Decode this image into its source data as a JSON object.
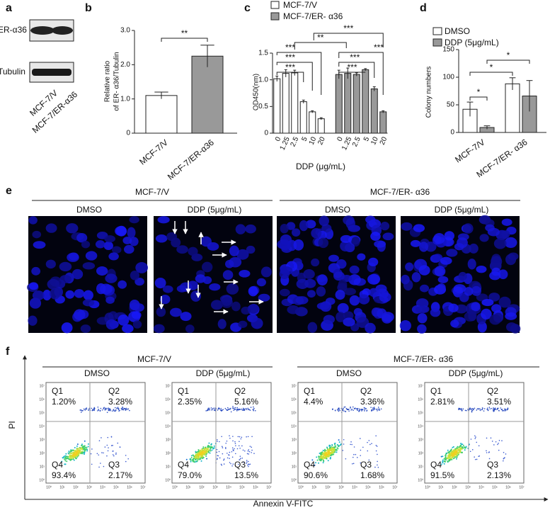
{
  "panel_a": {
    "label": "a",
    "bands": [
      "ER-α36",
      "Tubulin"
    ],
    "lanes": [
      "MCF-7/V",
      "MCF-7/ER-α36"
    ]
  },
  "chart_data": [
    {
      "type": "bar",
      "panel": "b",
      "ylabel": [
        "Relative ratio",
        "of ER- α36/Tubulin"
      ],
      "categories": [
        "MCF-7/V",
        "MCF-7/ER-α36"
      ],
      "values": [
        1.1,
        2.25
      ],
      "errors": [
        0.1,
        0.32
      ],
      "colors": [
        "#ffffff",
        "#999999"
      ],
      "ylim": [
        0,
        3
      ],
      "yticks": [
        0,
        {
          "value": 1,
          "label": "1.0"
        },
        {
          "value": 2,
          "label": "2.0"
        },
        {
          "value": 3,
          "label": "3.0"
        }
      ],
      "annotations": [
        "**"
      ]
    },
    {
      "type": "bar",
      "panel": "c",
      "xlabel": "DDP (μg/mL)",
      "ylabel": "OD450(nm)",
      "categories": [
        "0",
        "1.25",
        "2.5",
        "5",
        "10",
        "20"
      ],
      "series": [
        {
          "name": "MCF-7/V",
          "color": "#ffffff",
          "values": [
            1.02,
            1.12,
            1.13,
            0.59,
            0.4,
            0.27
          ],
          "errors": [
            0.05,
            0.07,
            0.05,
            0.03,
            0.02,
            0.02
          ]
        },
        {
          "name": "MCF-7/ER- α36",
          "color": "#999999",
          "values": [
            1.1,
            1.12,
            1.1,
            1.19,
            0.83,
            0.4
          ],
          "errors": [
            0.08,
            0.1,
            0.03,
            0.02,
            0.04,
            0.02
          ]
        }
      ],
      "ylim": [
        0,
        1.5
      ],
      "yticks": [
        0,
        0.5,
        {
          "value": 1,
          "label": "1.0"
        },
        1.5
      ],
      "annotations": [
        "***",
        "***",
        "***",
        "***",
        "**",
        "***",
        "***",
        "***"
      ]
    },
    {
      "type": "bar",
      "panel": "d",
      "ylabel": "Colony numbers",
      "categories": [
        "MCF-7/V",
        "MCF-7/ER- α36"
      ],
      "series": [
        {
          "name": "DMSO",
          "color": "#ffffff",
          "values": [
            42,
            88
          ],
          "errors": [
            13,
            11
          ]
        },
        {
          "name": "DDP (5μg/mL)",
          "color": "#999999",
          "values": [
            9,
            66
          ],
          "errors": [
            3,
            28
          ]
        }
      ],
      "ylim": [
        0,
        150
      ],
      "yticks": [
        0,
        50,
        100,
        150
      ],
      "annotations": [
        "*",
        "*",
        "*"
      ]
    }
  ],
  "panel_e": {
    "label": "e",
    "groups": [
      "MCF-7/V",
      "MCF-7/ER- α36"
    ],
    "conditions": [
      "DMSO",
      "DDP (5μg/mL)",
      "DMSO",
      "DDP (5μg/mL)"
    ]
  },
  "panel_f": {
    "label": "f",
    "groups": [
      "MCF-7/V",
      "MCF-7/ER- α36"
    ],
    "ylabel": "PI",
    "xlabel": "Annexin V-FITC",
    "ticks": [
      "10⁰",
      "10¹",
      "10²",
      "10³",
      "10⁴",
      "10⁵",
      "10⁶",
      "10⁷"
    ],
    "plots": [
      {
        "condition": "DMSO",
        "quadrants": [
          [
            "Q1",
            "1.20%"
          ],
          [
            "Q2",
            "3.28%"
          ],
          [
            "Q4",
            "93.4%"
          ],
          [
            "Q3",
            "2.17%"
          ]
        ]
      },
      {
        "condition": "DDP (5μg/mL)",
        "quadrants": [
          [
            "Q1",
            "2.35%"
          ],
          [
            "Q2",
            "5.16%"
          ],
          [
            "Q4",
            "79.0%"
          ],
          [
            "Q3",
            "13.5%"
          ]
        ]
      },
      {
        "condition": "DMSO",
        "quadrants": [
          [
            "Q1",
            "4.4%"
          ],
          [
            "Q2",
            "3.36%"
          ],
          [
            "Q4",
            "90.6%"
          ],
          [
            "Q3",
            "1.68%"
          ]
        ]
      },
      {
        "condition": "DDP (5μg/mL)",
        "quadrants": [
          [
            "Q1",
            "2.81%"
          ],
          [
            "Q2",
            "3.51%"
          ],
          [
            "Q4",
            "91.5%"
          ],
          [
            "Q3",
            "2.13%"
          ]
        ]
      }
    ]
  }
}
